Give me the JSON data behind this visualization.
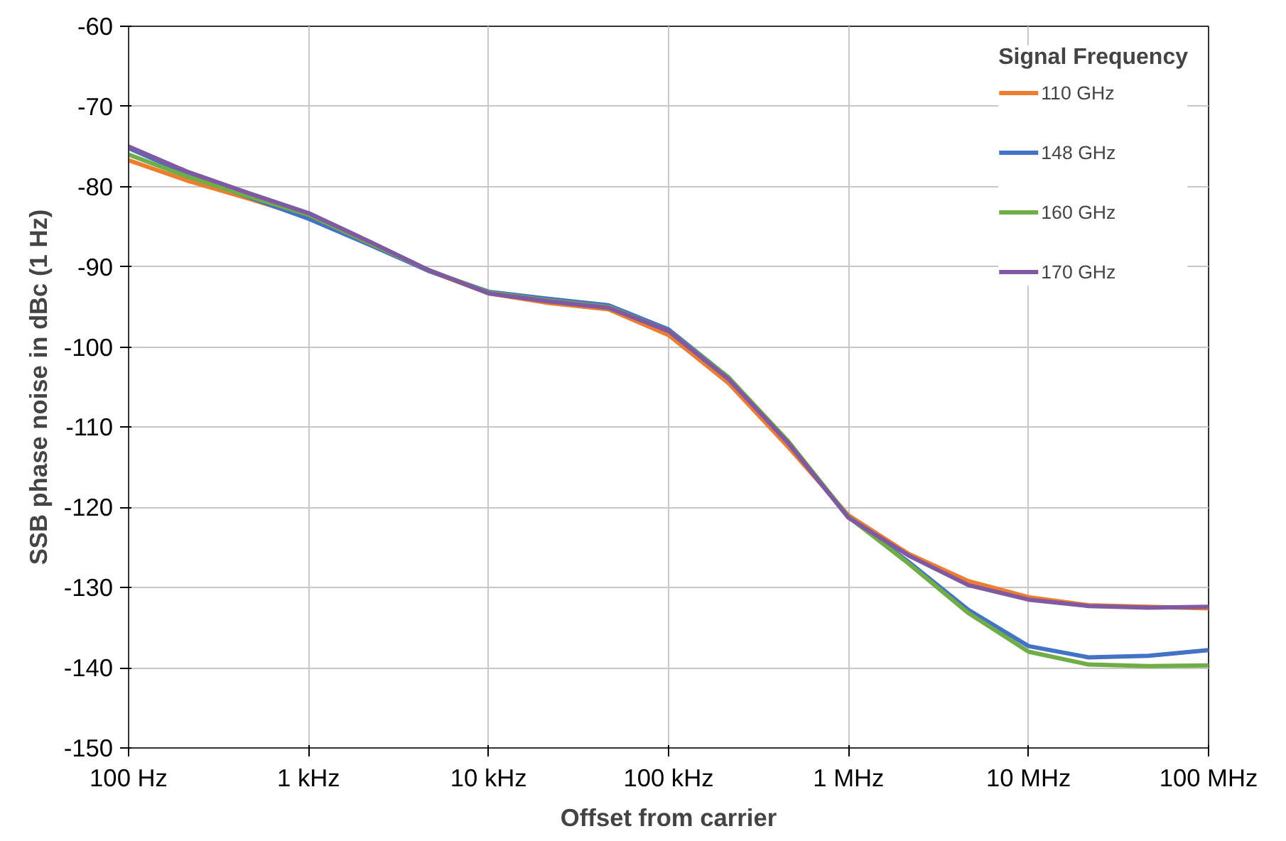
{
  "chart_data": {
    "type": "line",
    "xlabel": "Offset from carrier",
    "ylabel": "SSB phase noise in dBc (1 Hz)",
    "legend_title": "Signal Frequency",
    "categories": [
      "100 Hz",
      null,
      null,
      "1 kHz",
      null,
      null,
      "10 kHz",
      null,
      null,
      "100 kHz",
      null,
      null,
      "1 MHz",
      null,
      null,
      "10 MHz",
      null,
      null,
      "100 MHz"
    ],
    "series": [
      {
        "name": "110 GHz",
        "color": "#ed7d31",
        "values": [
          -76.7,
          -79.3,
          -81.5,
          -83.8,
          -87,
          -90.5,
          -93.3,
          -94.5,
          -95.3,
          -98.5,
          -104.5,
          -112.5,
          -121,
          -125.8,
          -129.2,
          -131.2,
          -132.2,
          -132.4,
          -132.6
        ]
      },
      {
        "name": "148 GHz",
        "color": "#4472c4",
        "values": [
          -75.2,
          -78.5,
          -81.3,
          -84,
          -87.2,
          -90.5,
          -93.1,
          -94,
          -94.8,
          -97.8,
          -103.8,
          -112,
          -121.2,
          -126.8,
          -132.8,
          -137.3,
          -138.7,
          -138.5,
          -137.8
        ]
      },
      {
        "name": "160 GHz",
        "color": "#70ad47",
        "values": [
          -76,
          -78.8,
          -81.2,
          -83.5,
          -87,
          -90.4,
          -93.2,
          -94.2,
          -95,
          -98,
          -103.8,
          -111.8,
          -121.2,
          -127,
          -133.2,
          -138,
          -139.6,
          -139.8,
          -139.7
        ]
      },
      {
        "name": "170 GHz",
        "color": "#7f5aa2",
        "values": [
          -75,
          -78.2,
          -80.8,
          -83.3,
          -86.8,
          -90.4,
          -93.3,
          -94.3,
          -95.1,
          -98,
          -104,
          -112,
          -121.3,
          -126,
          -129.7,
          -131.5,
          -132.3,
          -132.5,
          -132.4
        ]
      }
    ],
    "ylim": [
      -150,
      -60
    ],
    "yticks": [
      -150,
      -140,
      -130,
      -120,
      -110,
      -100,
      -90,
      -80,
      -70,
      -60
    ],
    "grid": true,
    "legend": "top right",
    "line_style": "solid",
    "marker": "none"
  }
}
